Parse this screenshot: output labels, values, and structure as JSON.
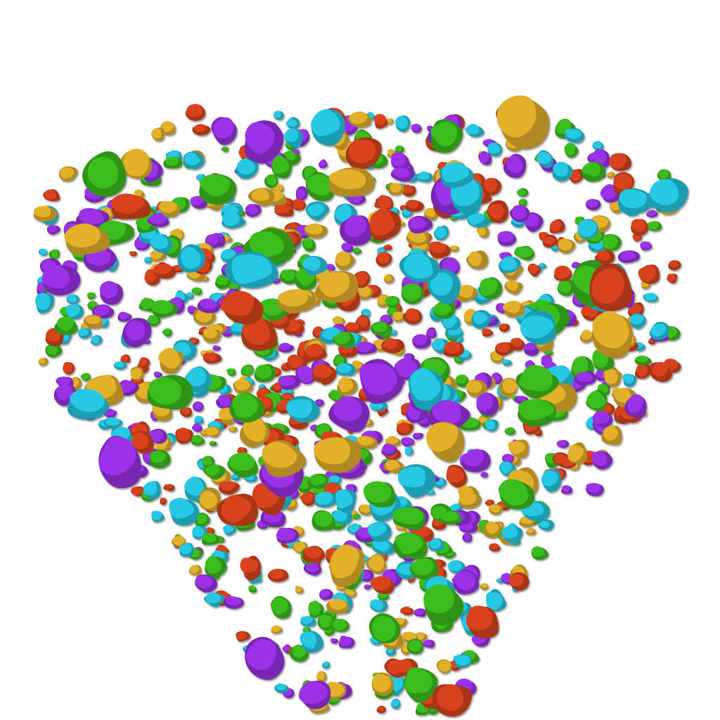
{
  "scene": {
    "subject": "3d-rendered-particle-cluster",
    "background_color": "#ffffff",
    "palette": {
      "purple": "#9b30e8",
      "green": "#3bbd1c",
      "cyan": "#27c8e3",
      "red": "#d8431e",
      "yellow": "#e3b02b"
    }
  }
}
